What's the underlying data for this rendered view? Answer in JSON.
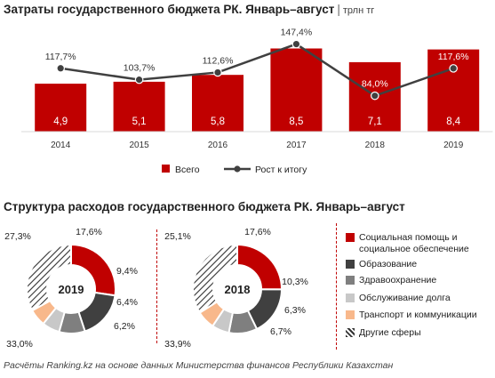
{
  "title_top": "Затраты государственного бюджета РК. Январь–август",
  "unit": "трлн тг",
  "title_bottom": "Структура расходов государственного бюджета РК. Январь–август",
  "source": "Расчёты Ranking.kz на основе данных Министерства финансов Республики Казахстан",
  "colors": {
    "bar": "#c00000",
    "line": "#404040",
    "education": "#404040",
    "health": "#7f7f7f",
    "debt": "#c8c8c8",
    "transport": "#f8b88b",
    "other_stroke": "#333333"
  },
  "chart_data": [
    {
      "type": "bar",
      "categories": [
        "2014",
        "2015",
        "2016",
        "2017",
        "2018",
        "2019"
      ],
      "series": [
        {
          "name": "Всего",
          "values": [
            4.9,
            5.1,
            5.8,
            8.5,
            7.1,
            8.4
          ],
          "labels": [
            "4,9",
            "5,1",
            "5,8",
            "8,5",
            "7,1",
            "8,4"
          ]
        },
        {
          "name": "Рост к итогу",
          "values": [
            117.7,
            103.7,
            112.6,
            147.4,
            84.0,
            117.6
          ],
          "labels": [
            "117,7%",
            "103,7%",
            "112,6%",
            "147,4%",
            "84,0%",
            "117,6%"
          ]
        }
      ],
      "ylim_bars": [
        0,
        10
      ],
      "ylim_line": [
        40,
        160
      ],
      "legend_position": "bottom"
    },
    {
      "type": "pie",
      "center_label": "2019",
      "categories": [
        "Социальная помощь и социальное обеспечение",
        "Образование",
        "Здравоохранение",
        "Обслуживание долга",
        "Транспорт и коммуникации",
        "Другие сферы"
      ],
      "values": [
        27.3,
        17.6,
        9.4,
        6.4,
        6.2,
        33.0
      ],
      "labels": [
        "27,3%",
        "17,6%",
        "9,4%",
        "6,4%",
        "6,2%",
        "33,0%"
      ]
    },
    {
      "type": "pie",
      "center_label": "2018",
      "categories": [
        "Социальная помощь и социальное обеспечение",
        "Образование",
        "Здравоохранение",
        "Обслуживание долга",
        "Транспорт и коммуникации",
        "Другие сферы"
      ],
      "values": [
        25.1,
        17.6,
        10.3,
        6.3,
        6.7,
        33.9
      ],
      "labels": [
        "25,1%",
        "17,6%",
        "10,3%",
        "6,3%",
        "6,7%",
        "33,9%"
      ]
    }
  ],
  "pie_legend": [
    {
      "lines": [
        "Социальная помощь и",
        "социальное обеспечение"
      ],
      "key": "social"
    },
    {
      "lines": [
        "Образование"
      ],
      "key": "education"
    },
    {
      "lines": [
        "Здравоохранение"
      ],
      "key": "health"
    },
    {
      "lines": [
        "Обслуживание долга"
      ],
      "key": "debt"
    },
    {
      "lines": [
        "Транспорт и коммуникации"
      ],
      "key": "transport"
    },
    {
      "lines": [
        "Другие сферы"
      ],
      "key": "other"
    }
  ]
}
